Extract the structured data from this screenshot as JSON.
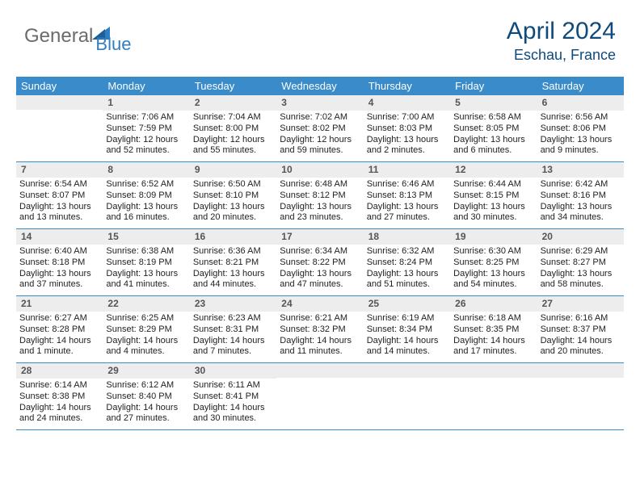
{
  "logo": {
    "part1": "General",
    "part2": "Blue"
  },
  "title": "April 2024",
  "location": "Eschau, France",
  "colors": {
    "brand_blue": "#2f7ec2",
    "brand_gray": "#6b6b6b",
    "title_blue": "#104a7a",
    "header_bg": "#3a8bc9",
    "daynum_bg": "#ededed",
    "border": "#3a8bc9"
  },
  "dow": [
    "Sunday",
    "Monday",
    "Tuesday",
    "Wednesday",
    "Thursday",
    "Friday",
    "Saturday"
  ],
  "weeks": [
    [
      {
        "num": ""
      },
      {
        "num": "1",
        "sunrise": "Sunrise: 7:06 AM",
        "sunset": "Sunset: 7:59 PM",
        "daylight1": "Daylight: 12 hours",
        "daylight2": "and 52 minutes."
      },
      {
        "num": "2",
        "sunrise": "Sunrise: 7:04 AM",
        "sunset": "Sunset: 8:00 PM",
        "daylight1": "Daylight: 12 hours",
        "daylight2": "and 55 minutes."
      },
      {
        "num": "3",
        "sunrise": "Sunrise: 7:02 AM",
        "sunset": "Sunset: 8:02 PM",
        "daylight1": "Daylight: 12 hours",
        "daylight2": "and 59 minutes."
      },
      {
        "num": "4",
        "sunrise": "Sunrise: 7:00 AM",
        "sunset": "Sunset: 8:03 PM",
        "daylight1": "Daylight: 13 hours",
        "daylight2": "and 2 minutes."
      },
      {
        "num": "5",
        "sunrise": "Sunrise: 6:58 AM",
        "sunset": "Sunset: 8:05 PM",
        "daylight1": "Daylight: 13 hours",
        "daylight2": "and 6 minutes."
      },
      {
        "num": "6",
        "sunrise": "Sunrise: 6:56 AM",
        "sunset": "Sunset: 8:06 PM",
        "daylight1": "Daylight: 13 hours",
        "daylight2": "and 9 minutes."
      }
    ],
    [
      {
        "num": "7",
        "sunrise": "Sunrise: 6:54 AM",
        "sunset": "Sunset: 8:07 PM",
        "daylight1": "Daylight: 13 hours",
        "daylight2": "and 13 minutes."
      },
      {
        "num": "8",
        "sunrise": "Sunrise: 6:52 AM",
        "sunset": "Sunset: 8:09 PM",
        "daylight1": "Daylight: 13 hours",
        "daylight2": "and 16 minutes."
      },
      {
        "num": "9",
        "sunrise": "Sunrise: 6:50 AM",
        "sunset": "Sunset: 8:10 PM",
        "daylight1": "Daylight: 13 hours",
        "daylight2": "and 20 minutes."
      },
      {
        "num": "10",
        "sunrise": "Sunrise: 6:48 AM",
        "sunset": "Sunset: 8:12 PM",
        "daylight1": "Daylight: 13 hours",
        "daylight2": "and 23 minutes."
      },
      {
        "num": "11",
        "sunrise": "Sunrise: 6:46 AM",
        "sunset": "Sunset: 8:13 PM",
        "daylight1": "Daylight: 13 hours",
        "daylight2": "and 27 minutes."
      },
      {
        "num": "12",
        "sunrise": "Sunrise: 6:44 AM",
        "sunset": "Sunset: 8:15 PM",
        "daylight1": "Daylight: 13 hours",
        "daylight2": "and 30 minutes."
      },
      {
        "num": "13",
        "sunrise": "Sunrise: 6:42 AM",
        "sunset": "Sunset: 8:16 PM",
        "daylight1": "Daylight: 13 hours",
        "daylight2": "and 34 minutes."
      }
    ],
    [
      {
        "num": "14",
        "sunrise": "Sunrise: 6:40 AM",
        "sunset": "Sunset: 8:18 PM",
        "daylight1": "Daylight: 13 hours",
        "daylight2": "and 37 minutes."
      },
      {
        "num": "15",
        "sunrise": "Sunrise: 6:38 AM",
        "sunset": "Sunset: 8:19 PM",
        "daylight1": "Daylight: 13 hours",
        "daylight2": "and 41 minutes."
      },
      {
        "num": "16",
        "sunrise": "Sunrise: 6:36 AM",
        "sunset": "Sunset: 8:21 PM",
        "daylight1": "Daylight: 13 hours",
        "daylight2": "and 44 minutes."
      },
      {
        "num": "17",
        "sunrise": "Sunrise: 6:34 AM",
        "sunset": "Sunset: 8:22 PM",
        "daylight1": "Daylight: 13 hours",
        "daylight2": "and 47 minutes."
      },
      {
        "num": "18",
        "sunrise": "Sunrise: 6:32 AM",
        "sunset": "Sunset: 8:24 PM",
        "daylight1": "Daylight: 13 hours",
        "daylight2": "and 51 minutes."
      },
      {
        "num": "19",
        "sunrise": "Sunrise: 6:30 AM",
        "sunset": "Sunset: 8:25 PM",
        "daylight1": "Daylight: 13 hours",
        "daylight2": "and 54 minutes."
      },
      {
        "num": "20",
        "sunrise": "Sunrise: 6:29 AM",
        "sunset": "Sunset: 8:27 PM",
        "daylight1": "Daylight: 13 hours",
        "daylight2": "and 58 minutes."
      }
    ],
    [
      {
        "num": "21",
        "sunrise": "Sunrise: 6:27 AM",
        "sunset": "Sunset: 8:28 PM",
        "daylight1": "Daylight: 14 hours",
        "daylight2": "and 1 minute."
      },
      {
        "num": "22",
        "sunrise": "Sunrise: 6:25 AM",
        "sunset": "Sunset: 8:29 PM",
        "daylight1": "Daylight: 14 hours",
        "daylight2": "and 4 minutes."
      },
      {
        "num": "23",
        "sunrise": "Sunrise: 6:23 AM",
        "sunset": "Sunset: 8:31 PM",
        "daylight1": "Daylight: 14 hours",
        "daylight2": "and 7 minutes."
      },
      {
        "num": "24",
        "sunrise": "Sunrise: 6:21 AM",
        "sunset": "Sunset: 8:32 PM",
        "daylight1": "Daylight: 14 hours",
        "daylight2": "and 11 minutes."
      },
      {
        "num": "25",
        "sunrise": "Sunrise: 6:19 AM",
        "sunset": "Sunset: 8:34 PM",
        "daylight1": "Daylight: 14 hours",
        "daylight2": "and 14 minutes."
      },
      {
        "num": "26",
        "sunrise": "Sunrise: 6:18 AM",
        "sunset": "Sunset: 8:35 PM",
        "daylight1": "Daylight: 14 hours",
        "daylight2": "and 17 minutes."
      },
      {
        "num": "27",
        "sunrise": "Sunrise: 6:16 AM",
        "sunset": "Sunset: 8:37 PM",
        "daylight1": "Daylight: 14 hours",
        "daylight2": "and 20 minutes."
      }
    ],
    [
      {
        "num": "28",
        "sunrise": "Sunrise: 6:14 AM",
        "sunset": "Sunset: 8:38 PM",
        "daylight1": "Daylight: 14 hours",
        "daylight2": "and 24 minutes."
      },
      {
        "num": "29",
        "sunrise": "Sunrise: 6:12 AM",
        "sunset": "Sunset: 8:40 PM",
        "daylight1": "Daylight: 14 hours",
        "daylight2": "and 27 minutes."
      },
      {
        "num": "30",
        "sunrise": "Sunrise: 6:11 AM",
        "sunset": "Sunset: 8:41 PM",
        "daylight1": "Daylight: 14 hours",
        "daylight2": "and 30 minutes."
      },
      {
        "num": ""
      },
      {
        "num": ""
      },
      {
        "num": ""
      },
      {
        "num": ""
      }
    ]
  ]
}
